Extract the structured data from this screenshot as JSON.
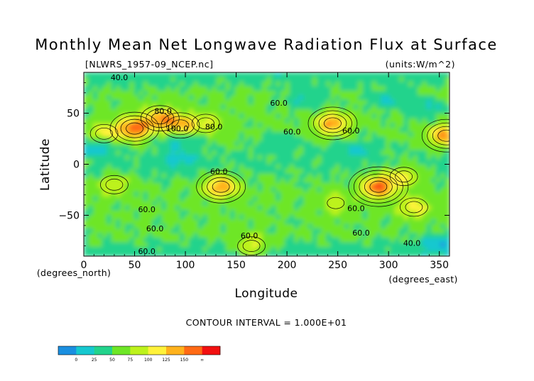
{
  "chart_data": {
    "type": "heatmap",
    "title": "Monthly Mean Net Longwave Radiation Flux at Surface",
    "file_label": "[NLWRS_1957-09_NCEP.nc]",
    "units_label": "(units:W/m^2)",
    "xlabel": "Longitude",
    "ylabel": "Latitude",
    "x_unit": "(degrees_north)",
    "y_unit": "(degrees_east)",
    "xlim": [
      0,
      360
    ],
    "ylim": [
      -90,
      90
    ],
    "x_ticks": [
      0,
      50,
      100,
      150,
      200,
      250,
      300,
      350
    ],
    "y_ticks": [
      50,
      0,
      -50
    ],
    "contour_interval_text": "CONTOUR INTERVAL = 1.000E+01",
    "colorbar": {
      "levels": [
        "0",
        "25",
        "50",
        "75",
        "100",
        "125",
        "150",
        "∞"
      ],
      "colors": [
        "#1a8fe0",
        "#16c8cf",
        "#22d38c",
        "#6ee626",
        "#bdf21c",
        "#fff23a",
        "#ffb21c",
        "#ff6a14",
        "#f21010"
      ]
    },
    "contour_labels": [
      {
        "text": "40.0",
        "lon": 35,
        "lat": 85
      },
      {
        "text": "80.0",
        "lon": 78,
        "lat": 52
      },
      {
        "text": "100.0",
        "lon": 92,
        "lat": 35
      },
      {
        "text": "80.0",
        "lon": 128,
        "lat": 37
      },
      {
        "text": "60.0",
        "lon": 192,
        "lat": 60
      },
      {
        "text": "60.0",
        "lon": 205,
        "lat": 32
      },
      {
        "text": "60.0",
        "lon": 263,
        "lat": 33
      },
      {
        "text": "60.0",
        "lon": 133,
        "lat": -7
      },
      {
        "text": "60.0",
        "lon": 62,
        "lat": -44
      },
      {
        "text": "60.0",
        "lon": 268,
        "lat": -43
      },
      {
        "text": "60.0",
        "lon": 70,
        "lat": -63
      },
      {
        "text": "60.0",
        "lon": 273,
        "lat": -67
      },
      {
        "text": "60.0",
        "lon": 163,
        "lat": -70
      },
      {
        "text": "40.0",
        "lon": 323,
        "lat": -77
      },
      {
        "text": "60.0",
        "lon": 62,
        "lat": -85
      }
    ],
    "hotspots": [
      {
        "lon": 50,
        "lat": 35,
        "value": 155
      },
      {
        "lon": 75,
        "lat": 45,
        "value": 130
      },
      {
        "lon": 20,
        "lat": 30,
        "value": 110
      },
      {
        "lon": 95,
        "lat": 38,
        "value": 120
      },
      {
        "lon": 120,
        "lat": 40,
        "value": 100
      },
      {
        "lon": 135,
        "lat": -22,
        "value": 140
      },
      {
        "lon": 245,
        "lat": 40,
        "value": 140
      },
      {
        "lon": 290,
        "lat": -22,
        "value": 160
      },
      {
        "lon": 357,
        "lat": 28,
        "value": 145
      },
      {
        "lon": 30,
        "lat": -20,
        "value": 100
      },
      {
        "lon": 315,
        "lat": -12,
        "value": 110
      },
      {
        "lon": 325,
        "lat": -42,
        "value": 110
      },
      {
        "lon": 248,
        "lat": -38,
        "value": 95
      },
      {
        "lon": 165,
        "lat": -80,
        "value": 110
      }
    ],
    "coldspots": [
      {
        "lon": 12,
        "lat": 17,
        "value": 25
      },
      {
        "lon": 95,
        "lat": 22,
        "value": 35
      },
      {
        "lon": 192,
        "lat": 20,
        "value": 45
      },
      {
        "lon": 220,
        "lat": 64,
        "value": 40
      },
      {
        "lon": 270,
        "lat": 15,
        "value": 40
      },
      {
        "lon": 95,
        "lat": 4,
        "value": 40
      },
      {
        "lon": 300,
        "lat": 62,
        "value": 40
      },
      {
        "lon": 340,
        "lat": 55,
        "value": 40
      },
      {
        "lon": 350,
        "lat": -78,
        "value": 30
      }
    ]
  }
}
